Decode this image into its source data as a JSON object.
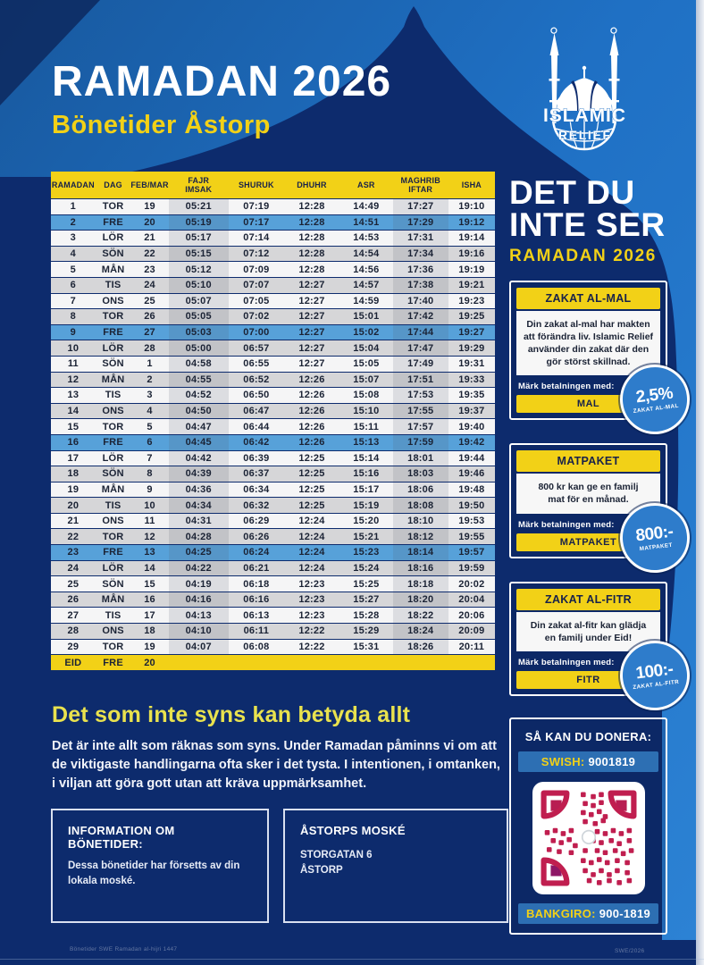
{
  "header": {
    "title": "RAMADAN 2026",
    "subtitle": "Bönetider Åstorp"
  },
  "logo": {
    "line1": "ISLAMIC",
    "line2": "RELIEF"
  },
  "campaign": {
    "title_line1": "DET DU",
    "title_line2": "INTE SER",
    "subtitle": "RAMADAN 2026"
  },
  "table": {
    "columns": [
      {
        "l1": "RAMADAN",
        "l2": ""
      },
      {
        "l1": "DAG",
        "l2": ""
      },
      {
        "l1": "FEB/MAR",
        "l2": ""
      },
      {
        "l1": "FAJR",
        "l2": "IMSAK"
      },
      {
        "l1": "SHURUK",
        "l2": ""
      },
      {
        "l1": "DHUHR",
        "l2": ""
      },
      {
        "l1": "ASR",
        "l2": ""
      },
      {
        "l1": "MAGHRIB",
        "l2": "IFTAR"
      },
      {
        "l1": "ISHA",
        "l2": ""
      }
    ],
    "rows": [
      {
        "cells": [
          "1",
          "TOR",
          "19",
          "05:21",
          "07:19",
          "12:28",
          "14:49",
          "17:27",
          "19:10"
        ],
        "friday": false
      },
      {
        "cells": [
          "2",
          "FRE",
          "20",
          "05:19",
          "07:17",
          "12:28",
          "14:51",
          "17:29",
          "19:12"
        ],
        "friday": true
      },
      {
        "cells": [
          "3",
          "LÖR",
          "21",
          "05:17",
          "07:14",
          "12:28",
          "14:53",
          "17:31",
          "19:14"
        ],
        "friday": false
      },
      {
        "cells": [
          "4",
          "SÖN",
          "22",
          "05:15",
          "07:12",
          "12:28",
          "14:54",
          "17:34",
          "19:16"
        ],
        "friday": false
      },
      {
        "cells": [
          "5",
          "MÅN",
          "23",
          "05:12",
          "07:09",
          "12:28",
          "14:56",
          "17:36",
          "19:19"
        ],
        "friday": false
      },
      {
        "cells": [
          "6",
          "TIS",
          "24",
          "05:10",
          "07:07",
          "12:27",
          "14:57",
          "17:38",
          "19:21"
        ],
        "friday": false
      },
      {
        "cells": [
          "7",
          "ONS",
          "25",
          "05:07",
          "07:05",
          "12:27",
          "14:59",
          "17:40",
          "19:23"
        ],
        "friday": false
      },
      {
        "cells": [
          "8",
          "TOR",
          "26",
          "05:05",
          "07:02",
          "12:27",
          "15:01",
          "17:42",
          "19:25"
        ],
        "friday": false
      },
      {
        "cells": [
          "9",
          "FRE",
          "27",
          "05:03",
          "07:00",
          "12:27",
          "15:02",
          "17:44",
          "19:27"
        ],
        "friday": true
      },
      {
        "cells": [
          "10",
          "LÖR",
          "28",
          "05:00",
          "06:57",
          "12:27",
          "15:04",
          "17:47",
          "19:29"
        ],
        "friday": false
      },
      {
        "cells": [
          "11",
          "SÖN",
          "1",
          "04:58",
          "06:55",
          "12:27",
          "15:05",
          "17:49",
          "19:31"
        ],
        "friday": false
      },
      {
        "cells": [
          "12",
          "MÅN",
          "2",
          "04:55",
          "06:52",
          "12:26",
          "15:07",
          "17:51",
          "19:33"
        ],
        "friday": false
      },
      {
        "cells": [
          "13",
          "TIS",
          "3",
          "04:52",
          "06:50",
          "12:26",
          "15:08",
          "17:53",
          "19:35"
        ],
        "friday": false
      },
      {
        "cells": [
          "14",
          "ONS",
          "4",
          "04:50",
          "06:47",
          "12:26",
          "15:10",
          "17:55",
          "19:37"
        ],
        "friday": false
      },
      {
        "cells": [
          "15",
          "TOR",
          "5",
          "04:47",
          "06:44",
          "12:26",
          "15:11",
          "17:57",
          "19:40"
        ],
        "friday": false
      },
      {
        "cells": [
          "16",
          "FRE",
          "6",
          "04:45",
          "06:42",
          "12:26",
          "15:13",
          "17:59",
          "19:42"
        ],
        "friday": true
      },
      {
        "cells": [
          "17",
          "LÖR",
          "7",
          "04:42",
          "06:39",
          "12:25",
          "15:14",
          "18:01",
          "19:44"
        ],
        "friday": false
      },
      {
        "cells": [
          "18",
          "SÖN",
          "8",
          "04:39",
          "06:37",
          "12:25",
          "15:16",
          "18:03",
          "19:46"
        ],
        "friday": false
      },
      {
        "cells": [
          "19",
          "MÅN",
          "9",
          "04:36",
          "06:34",
          "12:25",
          "15:17",
          "18:06",
          "19:48"
        ],
        "friday": false
      },
      {
        "cells": [
          "20",
          "TIS",
          "10",
          "04:34",
          "06:32",
          "12:25",
          "15:19",
          "18:08",
          "19:50"
        ],
        "friday": false
      },
      {
        "cells": [
          "21",
          "ONS",
          "11",
          "04:31",
          "06:29",
          "12:24",
          "15:20",
          "18:10",
          "19:53"
        ],
        "friday": false
      },
      {
        "cells": [
          "22",
          "TOR",
          "12",
          "04:28",
          "06:26",
          "12:24",
          "15:21",
          "18:12",
          "19:55"
        ],
        "friday": false
      },
      {
        "cells": [
          "23",
          "FRE",
          "13",
          "04:25",
          "06:24",
          "12:24",
          "15:23",
          "18:14",
          "19:57"
        ],
        "friday": true
      },
      {
        "cells": [
          "24",
          "LÖR",
          "14",
          "04:22",
          "06:21",
          "12:24",
          "15:24",
          "18:16",
          "19:59"
        ],
        "friday": false
      },
      {
        "cells": [
          "25",
          "SÖN",
          "15",
          "04:19",
          "06:18",
          "12:23",
          "15:25",
          "18:18",
          "20:02"
        ],
        "friday": false
      },
      {
        "cells": [
          "26",
          "MÅN",
          "16",
          "04:16",
          "06:16",
          "12:23",
          "15:27",
          "18:20",
          "20:04"
        ],
        "friday": false
      },
      {
        "cells": [
          "27",
          "TIS",
          "17",
          "04:13",
          "06:13",
          "12:23",
          "15:28",
          "18:22",
          "20:06"
        ],
        "friday": false
      },
      {
        "cells": [
          "28",
          "ONS",
          "18",
          "04:10",
          "06:11",
          "12:22",
          "15:29",
          "18:24",
          "20:09"
        ],
        "friday": false
      },
      {
        "cells": [
          "29",
          "TOR",
          "19",
          "04:07",
          "06:08",
          "12:22",
          "15:31",
          "18:26",
          "20:11"
        ],
        "friday": false
      }
    ],
    "eid": {
      "cells": [
        "EID",
        "FRE",
        "20",
        "",
        "",
        "",
        "",
        "",
        ""
      ]
    }
  },
  "cards": [
    {
      "title": "ZAKAT AL-MAL",
      "body": "Din zakat al-mal har makten att förändra liv. Islamic Relief använder din zakat där den gör störst skillnad.",
      "mark": "Märk betalningen med:",
      "button": "MAL",
      "badge_value": "2,5%",
      "badge_label": "ZAKAT AL-MAL"
    },
    {
      "title": "MATPAKET",
      "body": "800 kr kan ge en familj mat för en månad.",
      "mark": "Märk betalningen med:",
      "button": "MATPAKET",
      "badge_value": "800:-",
      "badge_label": "MATPAKET"
    },
    {
      "title": "ZAKAT AL-FITR",
      "body": "Din zakat al-fitr kan glädja en familj under Eid!",
      "mark": "Märk betalningen med:",
      "button": "FITR",
      "badge_value": "100:-",
      "badge_label": "ZAKAT AL-FITR"
    }
  ],
  "donate": {
    "title": "SÅ KAN DU DONERA:",
    "swish_label": "SWISH:",
    "swish_number": "9001819",
    "bankgiro_label": "BANKGIRO:",
    "bankgiro_number": "900-1819"
  },
  "message": {
    "heading": "Det som inte syns kan betyda allt",
    "body": "Det är inte allt som räknas som syns. Under Ramadan påminns vi om att de viktigaste handlingarna ofta sker i det tysta. I intentionen, i omtanken, i viljan att göra gott utan att kräva uppmärksamhet."
  },
  "info_boxes": {
    "left": {
      "title": "INFORMATION OM BÖNETIDER:",
      "body": "Dessa bönetider har försetts av din  lokala moské."
    },
    "right": {
      "title": "ÅSTORPS MOSKÉ",
      "line1": "STORGATAN 6",
      "line2": "ÅSTORP"
    }
  },
  "footer": {
    "left_text": "Bönetider SWE Ramadan al-hijri 1447",
    "right_text": "SWE/2026"
  },
  "colors": {
    "navy": "#0d2b6d",
    "bright_blue": "#1f70c4",
    "yellow": "#f2d117",
    "friday_blue": "#57a1d9",
    "row_alt": "#d6d6d8",
    "badge_blue": "#2e7ccb",
    "qr_magenta": "#c01e4f"
  }
}
